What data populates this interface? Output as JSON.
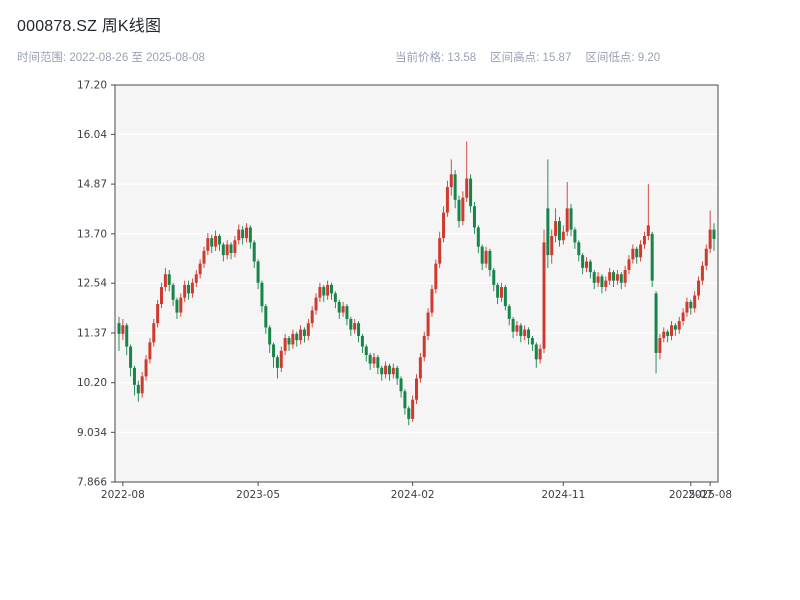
{
  "header": {
    "title": "000878.SZ 周K线图",
    "subtitle_left": "时间范围: 2022-08-26 至 2025-08-08",
    "stats": {
      "current": "当前价格: 13.58",
      "high": "区间高点: 15.87",
      "low": "区间低点: 9.20"
    }
  },
  "chart_data": {
    "type": "candlestick",
    "symbol": "000878.SZ",
    "period": "weekly",
    "title": "000878.SZ 周K线图",
    "date_start": "2022-08-26",
    "date_end": "2025-08-08",
    "current_price": 13.58,
    "range_high": 15.87,
    "range_low": 9.2,
    "up_color": "#cf3a2e",
    "down_color": "#17854b",
    "plot_bg": "#f5f5f6",
    "grid_color": "#ffffff",
    "spine_color": "#4a4a4a",
    "ylim": [
      7.866,
      17.2
    ],
    "y_ticks": [
      {
        "value": 17.2,
        "label": "17.20"
      },
      {
        "value": 16.04,
        "label": "16.04"
      },
      {
        "value": 14.87,
        "label": "14.87"
      },
      {
        "value": 13.7,
        "label": "13.70"
      },
      {
        "value": 12.54,
        "label": "12.54"
      },
      {
        "value": 11.37,
        "label": "11.37"
      },
      {
        "value": 10.2,
        "label": "10.20"
      },
      {
        "value": 9.034,
        "label": "9.034"
      },
      {
        "value": 7.866,
        "label": "7.866"
      }
    ],
    "x_ticks": [
      {
        "index": 1,
        "label": "2022-08"
      },
      {
        "index": 36,
        "label": "2023-05"
      },
      {
        "index": 76,
        "label": "2024-02"
      },
      {
        "index": 115,
        "label": "2024-11"
      },
      {
        "index": 148,
        "label": "2025-07"
      },
      {
        "index": 153,
        "label": "2025-08"
      }
    ],
    "candles": [
      [
        11.6,
        11.75,
        10.95,
        11.35
      ],
      [
        11.35,
        11.7,
        11.2,
        11.55
      ],
      [
        11.55,
        11.6,
        10.85,
        11.05
      ],
      [
        11.05,
        11.1,
        10.35,
        10.55
      ],
      [
        10.55,
        10.6,
        9.9,
        10.15
      ],
      [
        10.15,
        10.25,
        9.75,
        9.95
      ],
      [
        9.95,
        10.45,
        9.85,
        10.35
      ],
      [
        10.35,
        10.85,
        10.25,
        10.75
      ],
      [
        10.75,
        11.25,
        10.65,
        11.15
      ],
      [
        11.15,
        11.7,
        11.05,
        11.6
      ],
      [
        11.6,
        12.15,
        11.5,
        12.05
      ],
      [
        12.05,
        12.55,
        11.95,
        12.45
      ],
      [
        12.45,
        12.9,
        12.35,
        12.75
      ],
      [
        12.75,
        12.85,
        12.35,
        12.5
      ],
      [
        12.5,
        12.55,
        12.0,
        12.15
      ],
      [
        12.15,
        12.2,
        11.7,
        11.85
      ],
      [
        11.85,
        12.3,
        11.75,
        12.2
      ],
      [
        12.2,
        12.6,
        12.1,
        12.5
      ],
      [
        12.5,
        12.6,
        12.15,
        12.3
      ],
      [
        12.3,
        12.65,
        12.2,
        12.55
      ],
      [
        12.55,
        12.85,
        12.45,
        12.75
      ],
      [
        12.75,
        13.1,
        12.65,
        13.0
      ],
      [
        13.0,
        13.4,
        12.9,
        13.3
      ],
      [
        13.3,
        13.72,
        13.2,
        13.6
      ],
      [
        13.6,
        13.68,
        13.25,
        13.4
      ],
      [
        13.4,
        13.78,
        13.3,
        13.65
      ],
      [
        13.65,
        13.7,
        13.3,
        13.45
      ],
      [
        13.45,
        13.5,
        13.05,
        13.2
      ],
      [
        13.2,
        13.55,
        13.1,
        13.45
      ],
      [
        13.45,
        13.5,
        13.1,
        13.25
      ],
      [
        13.25,
        13.65,
        13.15,
        13.55
      ],
      [
        13.55,
        13.92,
        13.45,
        13.8
      ],
      [
        13.8,
        13.88,
        13.45,
        13.6
      ],
      [
        13.6,
        13.95,
        13.5,
        13.85
      ],
      [
        13.85,
        13.9,
        13.35,
        13.5
      ],
      [
        13.5,
        13.55,
        12.9,
        13.05
      ],
      [
        13.05,
        13.1,
        12.4,
        12.55
      ],
      [
        12.55,
        12.6,
        11.85,
        12.0
      ],
      [
        12.0,
        12.05,
        11.35,
        11.5
      ],
      [
        11.5,
        11.55,
        10.9,
        11.1
      ],
      [
        11.1,
        11.15,
        10.55,
        10.8
      ],
      [
        10.8,
        10.85,
        10.3,
        10.55
      ],
      [
        10.55,
        11.05,
        10.45,
        10.95
      ],
      [
        10.95,
        11.35,
        10.85,
        11.25
      ],
      [
        11.25,
        11.3,
        10.95,
        11.1
      ],
      [
        11.1,
        11.45,
        11.0,
        11.35
      ],
      [
        11.35,
        11.4,
        11.05,
        11.2
      ],
      [
        11.2,
        11.55,
        11.1,
        11.45
      ],
      [
        11.45,
        11.5,
        11.15,
        11.3
      ],
      [
        11.3,
        11.7,
        11.2,
        11.6
      ],
      [
        11.6,
        12.0,
        11.5,
        11.9
      ],
      [
        11.9,
        12.3,
        11.8,
        12.2
      ],
      [
        12.2,
        12.55,
        12.1,
        12.45
      ],
      [
        12.45,
        12.5,
        12.1,
        12.25
      ],
      [
        12.25,
        12.6,
        12.15,
        12.5
      ],
      [
        12.5,
        12.55,
        12.15,
        12.3
      ],
      [
        12.3,
        12.35,
        11.95,
        12.1
      ],
      [
        12.1,
        12.15,
        11.7,
        11.85
      ],
      [
        11.85,
        12.1,
        11.75,
        12.0
      ],
      [
        12.0,
        12.05,
        11.55,
        11.7
      ],
      [
        11.7,
        11.75,
        11.3,
        11.45
      ],
      [
        11.45,
        11.7,
        11.35,
        11.6
      ],
      [
        11.6,
        11.65,
        11.15,
        11.3
      ],
      [
        11.3,
        11.35,
        10.9,
        11.05
      ],
      [
        11.05,
        11.1,
        10.7,
        10.85
      ],
      [
        10.85,
        10.9,
        10.5,
        10.65
      ],
      [
        10.65,
        10.9,
        10.55,
        10.8
      ],
      [
        10.8,
        10.85,
        10.4,
        10.55
      ],
      [
        10.55,
        10.6,
        10.25,
        10.4
      ],
      [
        10.4,
        10.7,
        10.3,
        10.6
      ],
      [
        10.6,
        10.65,
        10.25,
        10.4
      ],
      [
        10.4,
        10.65,
        10.3,
        10.55
      ],
      [
        10.55,
        10.6,
        10.15,
        10.3
      ],
      [
        10.3,
        10.35,
        9.85,
        10.0
      ],
      [
        10.0,
        10.05,
        9.45,
        9.6
      ],
      [
        9.6,
        9.65,
        9.2,
        9.35
      ],
      [
        9.35,
        9.9,
        9.28,
        9.8
      ],
      [
        9.8,
        10.4,
        9.7,
        10.3
      ],
      [
        10.3,
        10.9,
        10.2,
        10.8
      ],
      [
        10.8,
        11.4,
        10.7,
        11.3
      ],
      [
        11.3,
        11.95,
        11.2,
        11.85
      ],
      [
        11.85,
        12.5,
        11.75,
        12.4
      ],
      [
        12.4,
        13.1,
        12.3,
        13.0
      ],
      [
        13.0,
        13.75,
        12.9,
        13.6
      ],
      [
        13.6,
        14.35,
        13.5,
        14.2
      ],
      [
        14.2,
        14.95,
        14.1,
        14.8
      ],
      [
        14.8,
        15.45,
        14.6,
        15.1
      ],
      [
        15.1,
        15.2,
        14.3,
        14.5
      ],
      [
        14.5,
        14.6,
        13.85,
        14.0
      ],
      [
        14.0,
        14.7,
        13.9,
        14.55
      ],
      [
        14.55,
        15.87,
        14.45,
        15.0
      ],
      [
        15.0,
        15.1,
        14.2,
        14.35
      ],
      [
        14.35,
        14.45,
        13.7,
        13.85
      ],
      [
        13.85,
        13.9,
        13.25,
        13.4
      ],
      [
        13.4,
        13.45,
        12.85,
        13.0
      ],
      [
        13.0,
        13.4,
        12.9,
        13.3
      ],
      [
        13.3,
        13.35,
        12.7,
        12.85
      ],
      [
        12.85,
        12.9,
        12.35,
        12.5
      ],
      [
        12.5,
        12.55,
        12.05,
        12.2
      ],
      [
        12.2,
        12.55,
        12.1,
        12.45
      ],
      [
        12.45,
        12.5,
        11.9,
        12.0
      ],
      [
        12.0,
        12.05,
        11.55,
        11.7
      ],
      [
        11.7,
        11.75,
        11.25,
        11.4
      ],
      [
        11.4,
        11.65,
        11.3,
        11.55
      ],
      [
        11.55,
        11.6,
        11.15,
        11.3
      ],
      [
        11.3,
        11.55,
        11.2,
        11.45
      ],
      [
        11.45,
        11.5,
        11.1,
        11.25
      ],
      [
        11.25,
        11.3,
        10.95,
        11.1
      ],
      [
        11.1,
        11.15,
        10.55,
        10.75
      ],
      [
        10.75,
        11.1,
        10.65,
        11.0
      ],
      [
        11.0,
        13.8,
        10.9,
        13.5
      ],
      [
        14.3,
        15.45,
        12.9,
        13.2
      ],
      [
        13.2,
        13.8,
        13.0,
        13.65
      ],
      [
        13.65,
        14.3,
        13.5,
        14.0
      ],
      [
        14.0,
        14.1,
        13.4,
        13.55
      ],
      [
        13.55,
        13.9,
        13.45,
        13.75
      ],
      [
        13.75,
        14.92,
        13.65,
        14.3
      ],
      [
        14.3,
        14.4,
        13.65,
        13.8
      ],
      [
        13.8,
        13.85,
        13.35,
        13.5
      ],
      [
        13.5,
        13.55,
        13.05,
        13.2
      ],
      [
        13.2,
        13.25,
        12.75,
        12.9
      ],
      [
        12.9,
        13.15,
        12.8,
        13.05
      ],
      [
        13.05,
        13.1,
        12.65,
        12.8
      ],
      [
        12.8,
        12.85,
        12.4,
        12.55
      ],
      [
        12.55,
        12.8,
        12.45,
        12.7
      ],
      [
        12.7,
        12.75,
        12.3,
        12.45
      ],
      [
        12.45,
        12.7,
        12.35,
        12.6
      ],
      [
        12.6,
        12.9,
        12.5,
        12.8
      ],
      [
        12.8,
        12.85,
        12.45,
        12.6
      ],
      [
        12.6,
        12.85,
        12.5,
        12.75
      ],
      [
        12.75,
        12.8,
        12.4,
        12.55
      ],
      [
        12.55,
        12.95,
        12.45,
        12.85
      ],
      [
        12.85,
        13.2,
        12.75,
        13.1
      ],
      [
        13.1,
        13.45,
        13.0,
        13.35
      ],
      [
        13.35,
        13.4,
        13.0,
        13.15
      ],
      [
        13.15,
        13.55,
        13.05,
        13.45
      ],
      [
        13.45,
        13.75,
        13.35,
        13.65
      ],
      [
        13.65,
        14.87,
        13.55,
        13.9
      ],
      [
        13.7,
        13.75,
        12.45,
        12.6
      ],
      [
        12.3,
        12.35,
        10.42,
        10.9
      ],
      [
        10.9,
        11.35,
        10.75,
        11.25
      ],
      [
        11.25,
        11.5,
        11.15,
        11.4
      ],
      [
        11.4,
        11.45,
        11.15,
        11.3
      ],
      [
        11.3,
        11.65,
        11.2,
        11.55
      ],
      [
        11.55,
        11.6,
        11.3,
        11.45
      ],
      [
        11.45,
        11.75,
        11.35,
        11.65
      ],
      [
        11.65,
        11.95,
        11.55,
        11.85
      ],
      [
        11.85,
        12.2,
        11.75,
        12.1
      ],
      [
        12.1,
        12.15,
        11.8,
        11.95
      ],
      [
        11.95,
        12.35,
        11.85,
        12.25
      ],
      [
        12.25,
        12.7,
        12.15,
        12.6
      ],
      [
        12.6,
        13.05,
        12.5,
        12.95
      ],
      [
        12.95,
        13.45,
        12.85,
        13.35
      ],
      [
        13.35,
        14.25,
        13.25,
        13.8
      ],
      [
        13.8,
        13.95,
        13.3,
        13.58
      ]
    ]
  }
}
